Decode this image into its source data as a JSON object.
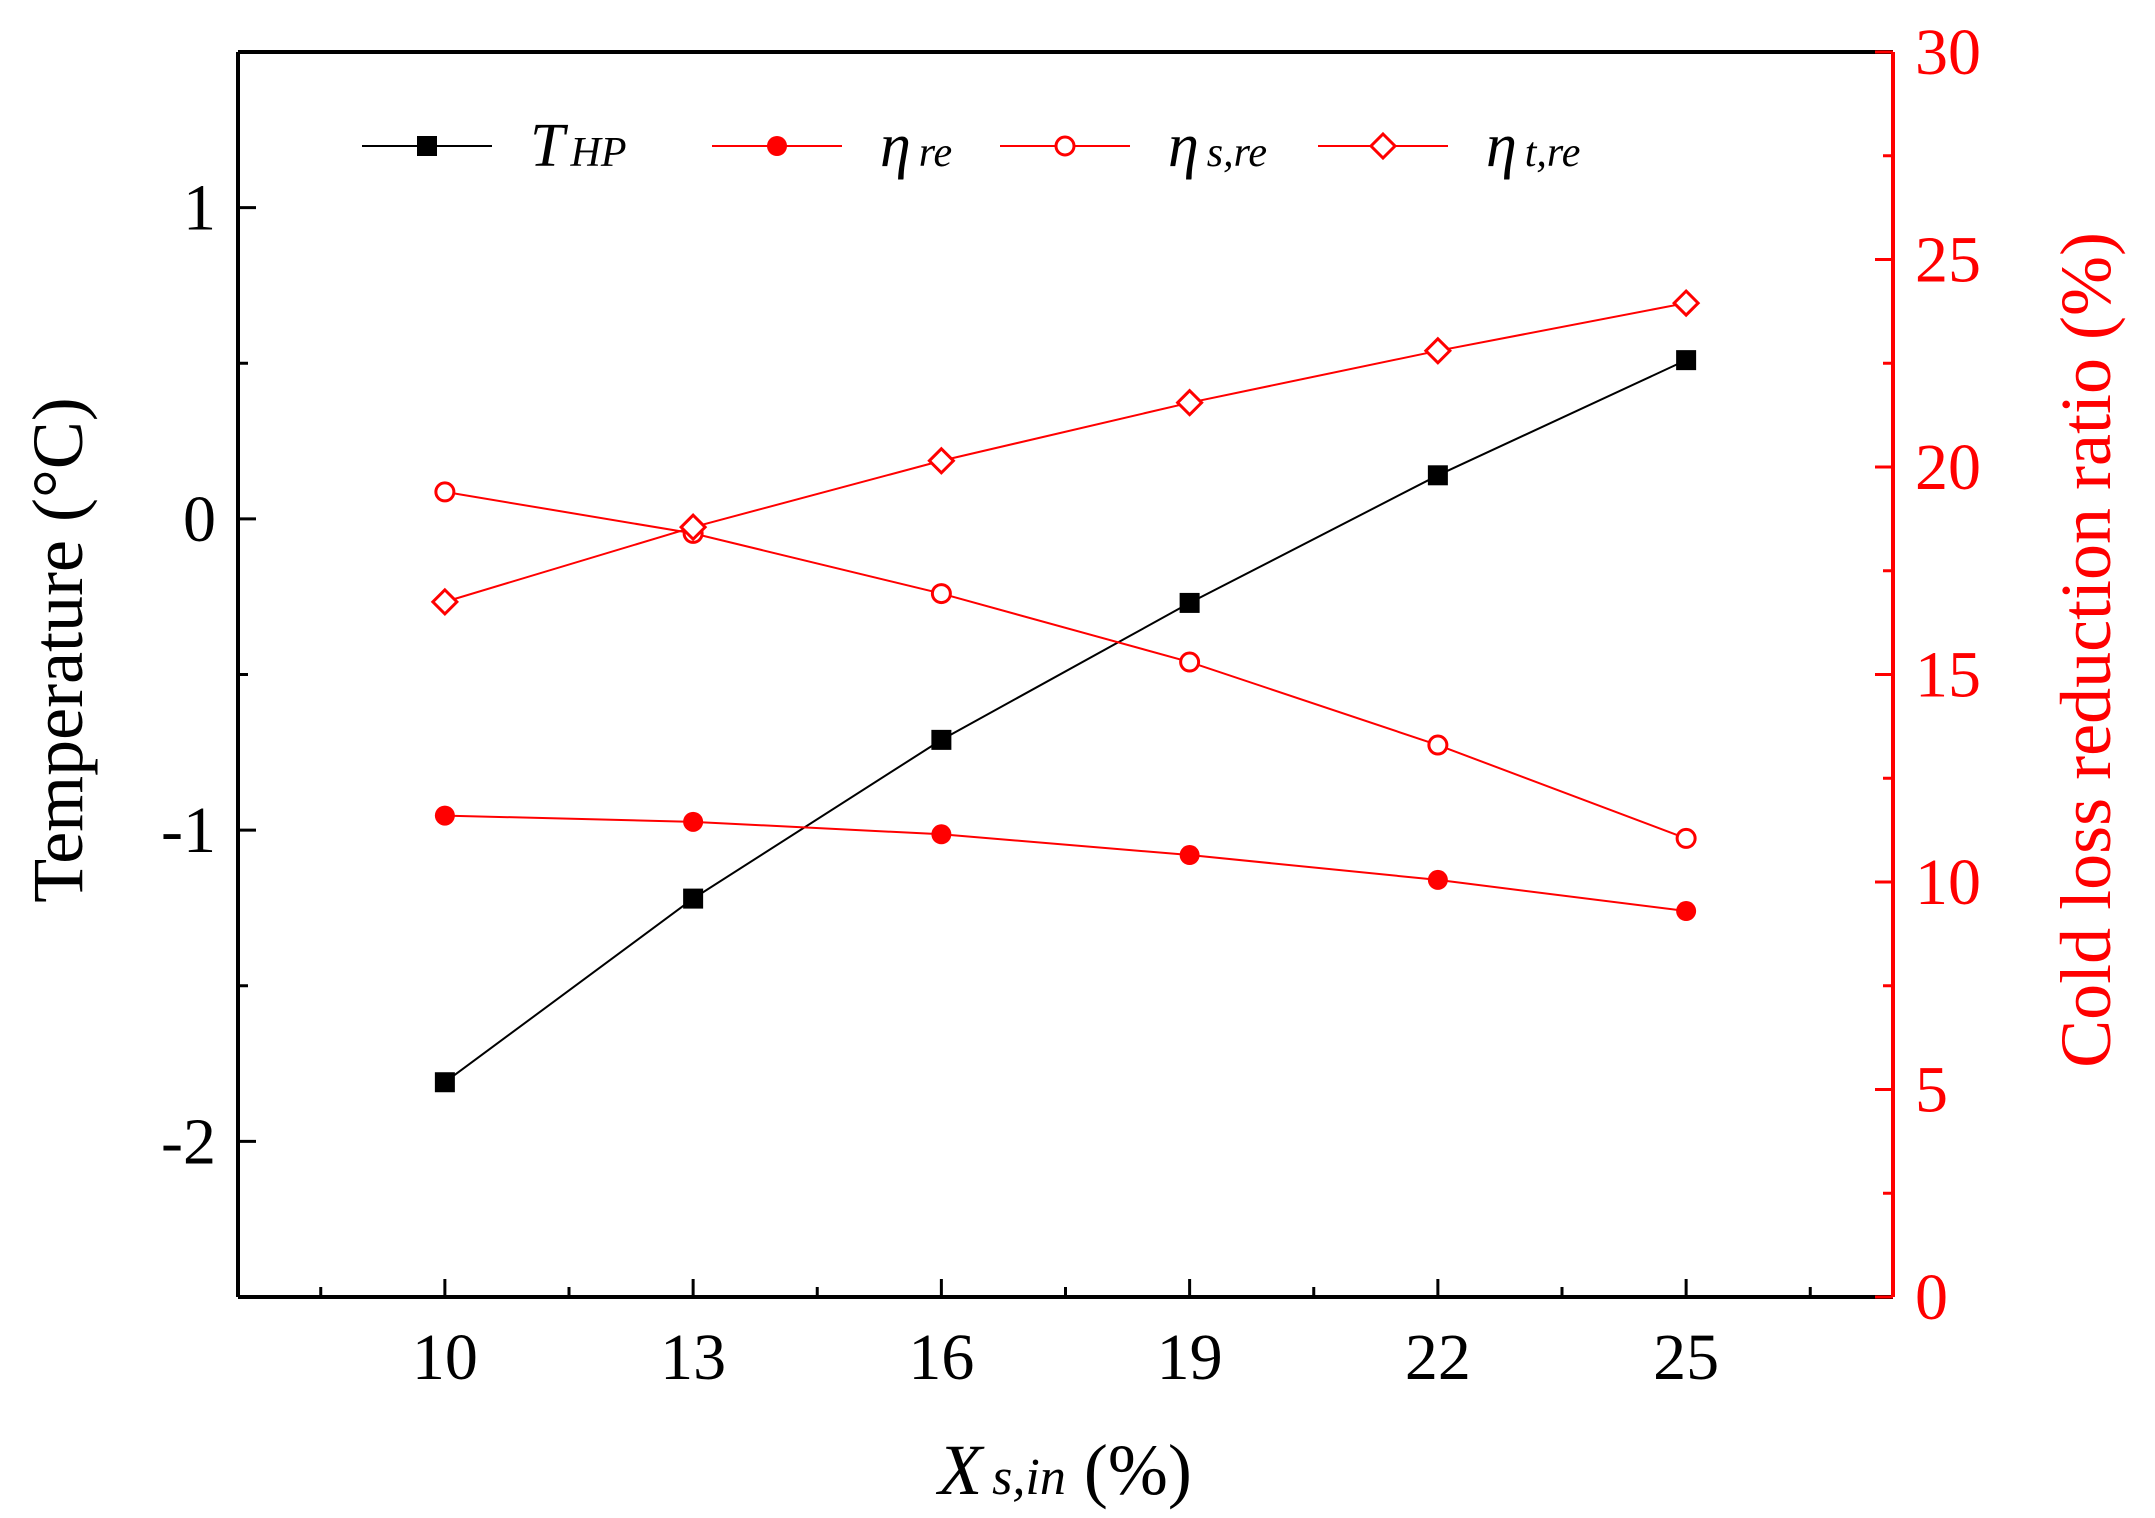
{
  "colors": {
    "left_axis": "#000000",
    "right_axis": "#ff0000",
    "series_black": "#000000",
    "series_red": "#ff0000"
  },
  "chart_data": {
    "type": "line",
    "x": [
      10,
      13,
      16,
      19,
      22,
      25
    ],
    "xlim": [
      7.5,
      27.5
    ],
    "x_major_ticks": [
      10,
      13,
      16,
      19,
      22,
      25
    ],
    "x_minor_ticks": [
      8.5,
      11.5,
      14.5,
      17.5,
      20.5,
      23.5,
      26.5
    ],
    "xlabel": {
      "main": "X",
      "sub": "s,in",
      "unit": " (%)"
    },
    "ylabel_left": "Temperature (°C)",
    "ylim_left": [
      -2.5,
      1.5
    ],
    "yticks_left": [
      "1",
      "0",
      "-1",
      "-2"
    ],
    "yticks_left_values": [
      1,
      0,
      -1,
      -2
    ],
    "ylabel_right": "Cold loss reduction ratio (%)",
    "ylim_right": [
      0,
      30
    ],
    "yticks_right": [
      "30",
      "25",
      "20",
      "15",
      "10",
      "5",
      "0"
    ],
    "yticks_right_values": [
      30,
      25,
      20,
      15,
      10,
      5,
      0
    ],
    "series": [
      {
        "name": "T",
        "sub": "HP",
        "axis": "left",
        "marker": "square-filled",
        "color": "#000000",
        "values": [
          -1.81,
          -1.22,
          -0.71,
          -0.27,
          0.14,
          0.51
        ]
      },
      {
        "name": "η",
        "sub": "re",
        "axis": "right",
        "marker": "circle-filled",
        "color": "#ff0000",
        "values": [
          11.6,
          11.45,
          11.15,
          10.65,
          10.05,
          9.3
        ]
      },
      {
        "name": "η",
        "sub": "s,re",
        "axis": "right",
        "marker": "circle-open",
        "color": "#ff0000",
        "values": [
          19.4,
          18.4,
          16.95,
          15.3,
          13.3,
          11.05
        ]
      },
      {
        "name": "η",
        "sub": "t,re",
        "axis": "right",
        "marker": "diamond-open",
        "color": "#ff0000",
        "values": [
          16.75,
          18.55,
          20.15,
          21.55,
          22.8,
          23.95
        ]
      }
    ],
    "legend": "top, horizontal"
  }
}
